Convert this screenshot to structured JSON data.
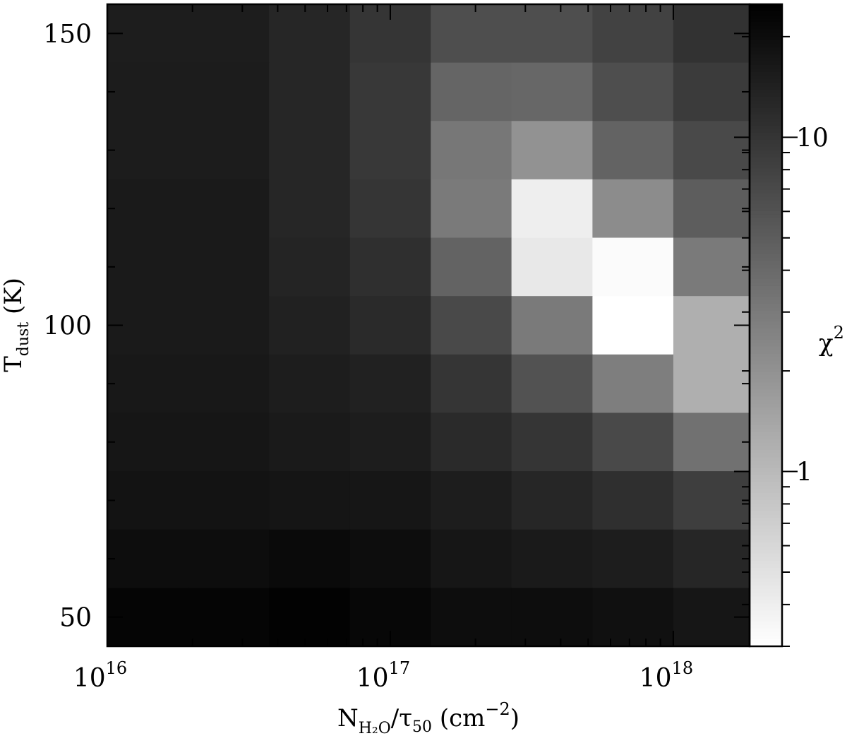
{
  "chart_data": {
    "type": "heatmap",
    "x_scale": "log",
    "x_range": [
      1e+16,
      1.86e+18
    ],
    "x_edges": [
      1e+16,
      1.93e+16,
      3.73e+16,
      7.2e+16,
      1.39e+17,
      2.68e+17,
      5.18e+17,
      1e+18,
      1.86e+18
    ],
    "y_range": [
      45,
      155
    ],
    "y_edges": [
      45,
      55,
      65,
      75,
      85,
      95,
      105,
      115,
      125,
      135,
      145,
      155
    ],
    "color_scale": "log",
    "colorbar_range": [
      0.3,
      25
    ],
    "colormap": [
      "#ffffff",
      "#000000"
    ],
    "x_ticks": [
      {
        "value": 1e+16,
        "base": "10",
        "exp": "16"
      },
      {
        "value": 1e+17,
        "base": "10",
        "exp": "17"
      },
      {
        "value": 1e+18,
        "base": "10",
        "exp": "18"
      }
    ],
    "y_ticks": [
      {
        "value": 50,
        "label": "50"
      },
      {
        "value": 100,
        "label": "100"
      },
      {
        "value": 150,
        "label": "150"
      }
    ],
    "colorbar_ticks": [
      {
        "value": 1,
        "label": "1"
      },
      {
        "value": 10,
        "label": "10"
      }
    ],
    "xlabel": {
      "main": "N",
      "sub": "H₂O",
      "rest": "/τ",
      "sub2": "50",
      "unit": " (cm",
      "unit_exp": "−2",
      "close": ")"
    },
    "ylabel": {
      "main": "T",
      "sub": "dust",
      "rest": " (K)"
    },
    "colorbar_label": {
      "main": "χ",
      "exp": "2"
    },
    "values_rows_top_to_bottom": [
      [
        15,
        15,
        13,
        10,
        6.5,
        6.5,
        8,
        10.5
      ],
      [
        15.5,
        15.5,
        13,
        9.5,
        4.3,
        4.2,
        6.5,
        9
      ],
      [
        15.5,
        15.5,
        13,
        9.5,
        3.2,
        2,
        4.5,
        7
      ],
      [
        16,
        16,
        13,
        10,
        3,
        0.4,
        2.2,
        5
      ],
      [
        16,
        16,
        13.5,
        11,
        4.5,
        0.45,
        0.32,
        3
      ],
      [
        16,
        16,
        14,
        12,
        7,
        3,
        0.3,
        1.2
      ],
      [
        16.5,
        16.5,
        15,
        14,
        10,
        6,
        2.8,
        1.2
      ],
      [
        17,
        17,
        16,
        15,
        12,
        10,
        7,
        3.5
      ],
      [
        18,
        18,
        17.5,
        17,
        15,
        13,
        11,
        8.5
      ],
      [
        20,
        20,
        21,
        20,
        17,
        16,
        15,
        13
      ],
      [
        23,
        23,
        24,
        22,
        20,
        20,
        19,
        17
      ]
    ]
  }
}
